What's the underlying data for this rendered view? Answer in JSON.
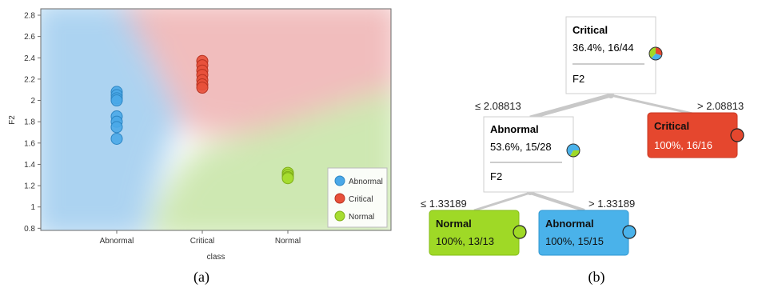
{
  "chart_data": [
    {
      "type": "scatter",
      "title": "",
      "xlabel": "class",
      "ylabel": "F2",
      "x_categories": [
        "Abnormal",
        "Critical",
        "Normal"
      ],
      "ylim": [
        0.78,
        2.86
      ],
      "y_ticks": [
        0.8,
        1,
        1.2,
        1.4,
        1.6,
        1.8,
        2,
        2.2,
        2.4,
        2.6,
        2.8
      ],
      "y_tick_labels": [
        "0.8",
        "1",
        "1.2",
        "1.4",
        "1.6",
        "1.8",
        "2",
        "2.2",
        "2.4",
        "2.6",
        "2.8"
      ],
      "grid": false,
      "legend_position": "bottom-right",
      "background": "class decision regions (Abnormal blue, Critical red, Normal green)",
      "series": [
        {
          "name": "Abnormal",
          "color": "#4aa8e8",
          "x": [
            "Abnormal",
            "Abnormal",
            "Abnormal",
            "Abnormal",
            "Abnormal",
            "Abnormal",
            "Abnormal",
            "Abnormal"
          ],
          "y": [
            2.08,
            2.05,
            2.02,
            2.0,
            1.85,
            1.8,
            1.75,
            1.64
          ]
        },
        {
          "name": "Critical",
          "color": "#e8503a",
          "x": [
            "Critical",
            "Critical",
            "Critical",
            "Critical",
            "Critical",
            "Critical",
            "Critical"
          ],
          "y": [
            2.37,
            2.33,
            2.28,
            2.24,
            2.19,
            2.15,
            2.12
          ]
        },
        {
          "name": "Normal",
          "color": "#a6dd30",
          "x": [
            "Normal",
            "Normal",
            "Normal",
            "Normal"
          ],
          "y": [
            1.32,
            1.3,
            1.28,
            1.27
          ]
        }
      ]
    },
    {
      "type": "tree",
      "nodes": [
        {
          "id": "root",
          "class": "Critical",
          "stats": "36.4%, 16/44",
          "split": "F2",
          "fill": "#ffffff"
        },
        {
          "id": "abn",
          "class": "Abnormal",
          "stats": "53.6%, 15/28",
          "split": "F2",
          "fill": "#ffffff",
          "edge_label": "≤ 2.08813"
        },
        {
          "id": "crit",
          "class": "Critical",
          "stats": "100%, 16/16",
          "fill": "#e5472e",
          "edge_label": "> 2.08813"
        },
        {
          "id": "norm",
          "class": "Normal",
          "stats": "100%, 13/13",
          "fill": "#9fd926",
          "edge_label": "≤ 1.33189"
        },
        {
          "id": "abn2",
          "class": "Abnormal",
          "stats": "100%, 15/15",
          "fill": "#4ab2ea",
          "edge_label": "> 1.33189"
        }
      ]
    }
  ],
  "captions": {
    "a": "(a)",
    "b": "(b)"
  }
}
